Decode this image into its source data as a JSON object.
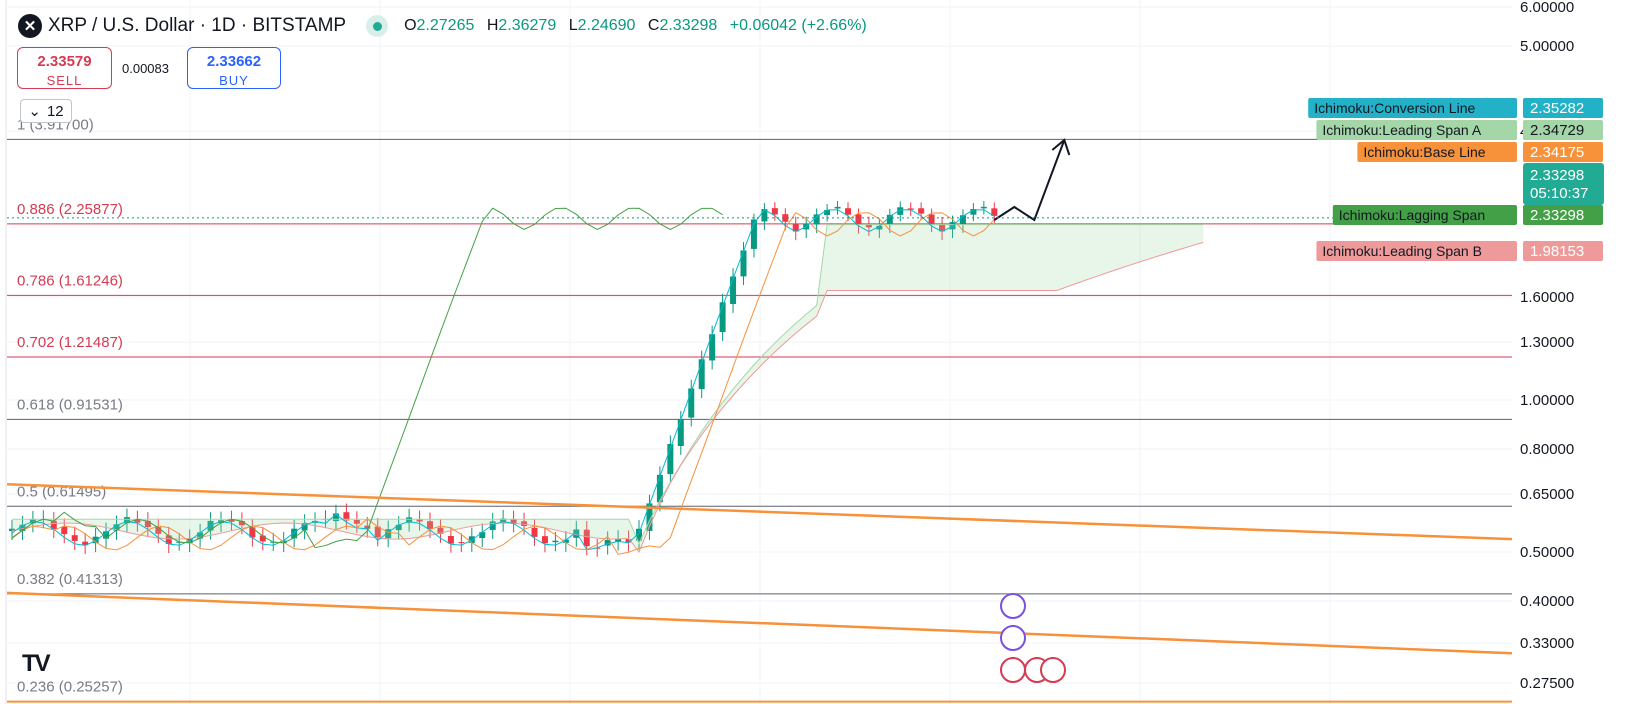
{
  "header": {
    "symbol_icon": "x-logo-icon",
    "title": "XRP / U.S. Dollar · 1D · BITSTAMP",
    "ohlc": [
      {
        "k": "O",
        "v": "2.27265"
      },
      {
        "k": "H",
        "v": "2.36279"
      },
      {
        "k": "L",
        "v": "2.24690"
      },
      {
        "k": "C",
        "v": "2.33298"
      }
    ],
    "change": "+0.06042 (+2.66%)"
  },
  "trade": {
    "sell_price": "2.33579",
    "sell_label": "SELL",
    "spread": "0.00083",
    "buy_price": "2.33662",
    "buy_label": "BUY"
  },
  "collapse_count": "12",
  "colors": {
    "up": "#089981",
    "down": "#f23645",
    "fib_red": "#d53b52",
    "fib_gray": "#787b86",
    "channel": "#f7913a",
    "conversion": "#00bcd4",
    "base": "#f7913a",
    "lagging": "#43a047",
    "span_a": "#a5d6a7",
    "span_b": "#ef9a9a"
  },
  "chart_data": {
    "type": "candlestick",
    "scale": "log",
    "y_ticks": [
      6.0,
      5.0,
      4.0,
      1.6,
      1.3,
      1.0,
      0.8,
      0.65,
      0.5,
      0.4,
      0.33,
      0.275
    ],
    "y_tick_labels": [
      "6.00000",
      "5.00000",
      "4.00000",
      "1.60000",
      "1.30000",
      "1.00000",
      "0.80000",
      "0.65000",
      "0.50000",
      "0.40000",
      "0.33000",
      "0.27500"
    ],
    "fib_levels": [
      {
        "ratio": "1",
        "label": "1 (3.91700)",
        "value": 3.917,
        "color": "gray"
      },
      {
        "ratio": "0.886",
        "label": "0.886 (2.25877)",
        "value": 2.25877,
        "color": "red"
      },
      {
        "ratio": "0.786",
        "label": "0.786 (1.61246)",
        "value": 1.61246,
        "color": "red"
      },
      {
        "ratio": "0.702",
        "label": "0.702 (1.21487)",
        "value": 1.21487,
        "color": "red"
      },
      {
        "ratio": "0.618",
        "label": "0.618 (0.91531)",
        "value": 0.91531,
        "color": "gray"
      },
      {
        "ratio": "0.5",
        "label": "0.5 (0.61495)",
        "value": 0.61495,
        "color": "gray"
      },
      {
        "ratio": "0.382",
        "label": "0.382 (0.41313)",
        "value": 0.41313,
        "color": "gray"
      },
      {
        "ratio": "0.236",
        "label": "0.236 (0.25257)",
        "value": 0.25257,
        "color": "orange"
      }
    ],
    "value_labels": [
      {
        "name": "Ichimoku:Conversion Line",
        "value": "2.35282",
        "color": "#22b1c6"
      },
      {
        "name": "Ichimoku:Leading Span A",
        "value": "2.34729",
        "color": "#a5d6a7"
      },
      {
        "name": "Ichimoku:Base Line",
        "value": "2.34175",
        "color": "#f7913a"
      },
      {
        "name": "Ichimoku:Lagging Span",
        "value": "2.33298",
        "color": "#43a047"
      },
      {
        "name": "Ichimoku:Leading Span B",
        "value": "1.98153",
        "color": "#ef9a9a"
      }
    ],
    "last_price": "2.33298",
    "countdown": "05:10:37",
    "candle_count": 95,
    "candles": [],
    "channel_upper": {
      "start": 0.68,
      "end": 0.53
    },
    "channel_lower": {
      "start": 0.415,
      "end": 0.315
    }
  },
  "events": {
    "icons": [
      "sparkle-icon",
      "lightning-icon",
      "us-flag-icon"
    ]
  },
  "logo_text": "TV"
}
